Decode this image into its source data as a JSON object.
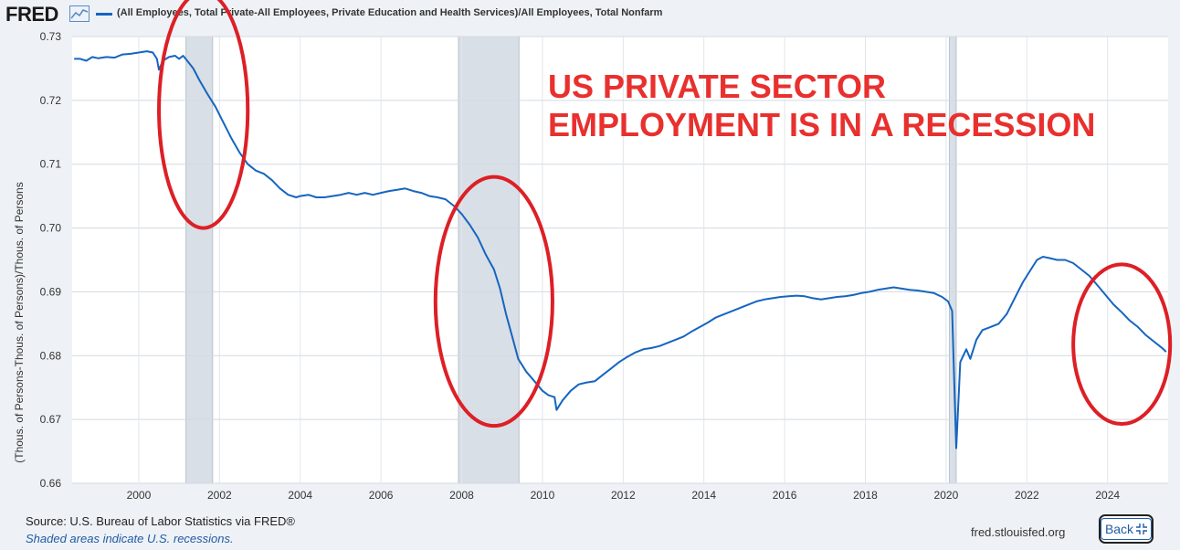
{
  "header": {
    "logo_text": "FRED",
    "logo_icon": "line-chart-icon",
    "series_legend": "(All Employees, Total Private-All Employees, Private Education and Health Services)/All Employees, Total Nonfarm"
  },
  "overlay_text": {
    "line1": "US PRIVATE SECTOR",
    "line2": "EMPLOYMENT IS IN A RECESSION"
  },
  "footer": {
    "source": "Source: U.S. Bureau of Labor Statistics via FRED®",
    "note": "Shaded areas indicate U.S. recessions.",
    "url": "fred.stlouisfed.org",
    "back_label": "Back",
    "back_icon": "collapse-arrows-icon"
  },
  "colors": {
    "series": "#1565c0",
    "recession": "#d9dfe6",
    "annotation": "#dd1f26",
    "title": "#e8302e"
  },
  "chart_data": {
    "type": "line",
    "title": "",
    "xlabel": "",
    "ylabel": "(Thous. of Persons-Thous. of Persons)/Thous. of Persons",
    "xlim": [
      1998.35,
      2025.5
    ],
    "ylim": [
      0.66,
      0.73
    ],
    "yticks": [
      0.66,
      0.67,
      0.68,
      0.69,
      0.7,
      0.71,
      0.72,
      0.73
    ],
    "ytick_labels": [
      "0.66",
      "0.67",
      "0.68",
      "0.69",
      "0.70",
      "0.71",
      "0.72",
      "0.73"
    ],
    "xticks": [
      2000,
      2002,
      2004,
      2006,
      2008,
      2010,
      2012,
      2014,
      2016,
      2018,
      2020,
      2022,
      2024
    ],
    "xtick_labels": [
      "2000",
      "2002",
      "2004",
      "2006",
      "2008",
      "2010",
      "2012",
      "2014",
      "2016",
      "2018",
      "2020",
      "2022",
      "2024"
    ],
    "grid": true,
    "recessions": [
      [
        2001.17,
        2001.83
      ],
      [
        2007.92,
        2009.42
      ],
      [
        2020.08,
        2020.25
      ]
    ],
    "annotation_circles": [
      {
        "center": [
          2001.6,
          0.7185
        ],
        "semi_axes_years": [
          1.1
        ],
        "semi_axes_value": [
          0.0185
        ]
      },
      {
        "center": [
          2008.8,
          0.6885
        ],
        "semi_axes_years": [
          1.45
        ],
        "semi_axes_value": [
          0.0195
        ]
      },
      {
        "center": [
          2024.35,
          0.6818
        ],
        "semi_axes_years": [
          1.2
        ],
        "semi_axes_value": [
          0.0125
        ]
      }
    ],
    "series": [
      {
        "name": "(All Employees, Total Private-All Employees, Private Education and Health Services)/All Employees, Total Nonfarm",
        "points": [
          [
            1998.4,
            0.7265
          ],
          [
            1998.55,
            0.7265
          ],
          [
            1998.7,
            0.7262
          ],
          [
            1998.85,
            0.7268
          ],
          [
            1999.0,
            0.7266
          ],
          [
            1999.2,
            0.7268
          ],
          [
            1999.4,
            0.7267
          ],
          [
            1999.6,
            0.7272
          ],
          [
            1999.8,
            0.7273
          ],
          [
            2000.0,
            0.7275
          ],
          [
            2000.2,
            0.7277
          ],
          [
            2000.35,
            0.7275
          ],
          [
            2000.45,
            0.7265
          ],
          [
            2000.5,
            0.7248
          ],
          [
            2000.6,
            0.7262
          ],
          [
            2000.75,
            0.7268
          ],
          [
            2000.9,
            0.727
          ],
          [
            2001.0,
            0.7265
          ],
          [
            2001.1,
            0.727
          ],
          [
            2001.2,
            0.7262
          ],
          [
            2001.35,
            0.725
          ],
          [
            2001.5,
            0.7232
          ],
          [
            2001.7,
            0.721
          ],
          [
            2001.9,
            0.719
          ],
          [
            2002.1,
            0.7165
          ],
          [
            2002.3,
            0.714
          ],
          [
            2002.5,
            0.7118
          ],
          [
            2002.7,
            0.71
          ],
          [
            2002.9,
            0.709
          ],
          [
            2003.1,
            0.7085
          ],
          [
            2003.3,
            0.7075
          ],
          [
            2003.5,
            0.7062
          ],
          [
            2003.7,
            0.7052
          ],
          [
            2003.9,
            0.7048
          ],
          [
            2004.0,
            0.705
          ],
          [
            2004.2,
            0.7052
          ],
          [
            2004.4,
            0.7048
          ],
          [
            2004.6,
            0.7048
          ],
          [
            2004.8,
            0.705
          ],
          [
            2005.0,
            0.7052
          ],
          [
            2005.2,
            0.7055
          ],
          [
            2005.4,
            0.7052
          ],
          [
            2005.6,
            0.7055
          ],
          [
            2005.8,
            0.7052
          ],
          [
            2006.0,
            0.7055
          ],
          [
            2006.2,
            0.7058
          ],
          [
            2006.4,
            0.706
          ],
          [
            2006.6,
            0.7062
          ],
          [
            2006.8,
            0.7058
          ],
          [
            2007.0,
            0.7055
          ],
          [
            2007.2,
            0.705
          ],
          [
            2007.4,
            0.7048
          ],
          [
            2007.6,
            0.7045
          ],
          [
            2007.8,
            0.7035
          ],
          [
            2008.0,
            0.7022
          ],
          [
            2008.2,
            0.7005
          ],
          [
            2008.4,
            0.6985
          ],
          [
            2008.6,
            0.6958
          ],
          [
            2008.8,
            0.6935
          ],
          [
            2008.95,
            0.6905
          ],
          [
            2009.1,
            0.6865
          ],
          [
            2009.25,
            0.683
          ],
          [
            2009.4,
            0.6795
          ],
          [
            2009.6,
            0.6775
          ],
          [
            2009.8,
            0.676
          ],
          [
            2010.0,
            0.6745
          ],
          [
            2010.15,
            0.6738
          ],
          [
            2010.3,
            0.6735
          ],
          [
            2010.35,
            0.6715
          ],
          [
            2010.5,
            0.673
          ],
          [
            2010.7,
            0.6745
          ],
          [
            2010.9,
            0.6755
          ],
          [
            2011.1,
            0.6758
          ],
          [
            2011.3,
            0.676
          ],
          [
            2011.5,
            0.677
          ],
          [
            2011.7,
            0.678
          ],
          [
            2011.9,
            0.679
          ],
          [
            2012.1,
            0.6798
          ],
          [
            2012.3,
            0.6805
          ],
          [
            2012.5,
            0.681
          ],
          [
            2012.7,
            0.6812
          ],
          [
            2012.9,
            0.6815
          ],
          [
            2013.1,
            0.682
          ],
          [
            2013.3,
            0.6825
          ],
          [
            2013.5,
            0.683
          ],
          [
            2013.7,
            0.6838
          ],
          [
            2013.9,
            0.6845
          ],
          [
            2014.1,
            0.6852
          ],
          [
            2014.3,
            0.686
          ],
          [
            2014.5,
            0.6865
          ],
          [
            2014.7,
            0.687
          ],
          [
            2014.9,
            0.6875
          ],
          [
            2015.1,
            0.688
          ],
          [
            2015.3,
            0.6885
          ],
          [
            2015.5,
            0.6888
          ],
          [
            2015.7,
            0.689
          ],
          [
            2015.9,
            0.6892
          ],
          [
            2016.1,
            0.6893
          ],
          [
            2016.3,
            0.6894
          ],
          [
            2016.5,
            0.6893
          ],
          [
            2016.7,
            0.689
          ],
          [
            2016.9,
            0.6888
          ],
          [
            2017.1,
            0.689
          ],
          [
            2017.3,
            0.6892
          ],
          [
            2017.5,
            0.6893
          ],
          [
            2017.7,
            0.6895
          ],
          [
            2017.9,
            0.6898
          ],
          [
            2018.1,
            0.69
          ],
          [
            2018.3,
            0.6903
          ],
          [
            2018.5,
            0.6905
          ],
          [
            2018.7,
            0.6907
          ],
          [
            2018.9,
            0.6905
          ],
          [
            2019.1,
            0.6903
          ],
          [
            2019.3,
            0.6902
          ],
          [
            2019.5,
            0.69
          ],
          [
            2019.7,
            0.6898
          ],
          [
            2019.9,
            0.6892
          ],
          [
            2020.05,
            0.6885
          ],
          [
            2020.15,
            0.687
          ],
          [
            2020.25,
            0.6655
          ],
          [
            2020.35,
            0.679
          ],
          [
            2020.5,
            0.681
          ],
          [
            2020.6,
            0.6795
          ],
          [
            2020.75,
            0.6825
          ],
          [
            2020.9,
            0.684
          ],
          [
            2021.1,
            0.6845
          ],
          [
            2021.3,
            0.685
          ],
          [
            2021.5,
            0.6865
          ],
          [
            2021.7,
            0.689
          ],
          [
            2021.9,
            0.6915
          ],
          [
            2022.1,
            0.6935
          ],
          [
            2022.25,
            0.695
          ],
          [
            2022.4,
            0.6955
          ],
          [
            2022.55,
            0.6953
          ],
          [
            2022.75,
            0.695
          ],
          [
            2022.95,
            0.695
          ],
          [
            2023.15,
            0.6945
          ],
          [
            2023.35,
            0.6935
          ],
          [
            2023.55,
            0.6925
          ],
          [
            2023.75,
            0.691
          ],
          [
            2023.95,
            0.6895
          ],
          [
            2024.15,
            0.688
          ],
          [
            2024.35,
            0.6868
          ],
          [
            2024.55,
            0.6855
          ],
          [
            2024.75,
            0.6845
          ],
          [
            2024.95,
            0.6832
          ],
          [
            2025.15,
            0.6822
          ],
          [
            2025.35,
            0.6812
          ],
          [
            2025.45,
            0.6806
          ]
        ]
      }
    ]
  }
}
